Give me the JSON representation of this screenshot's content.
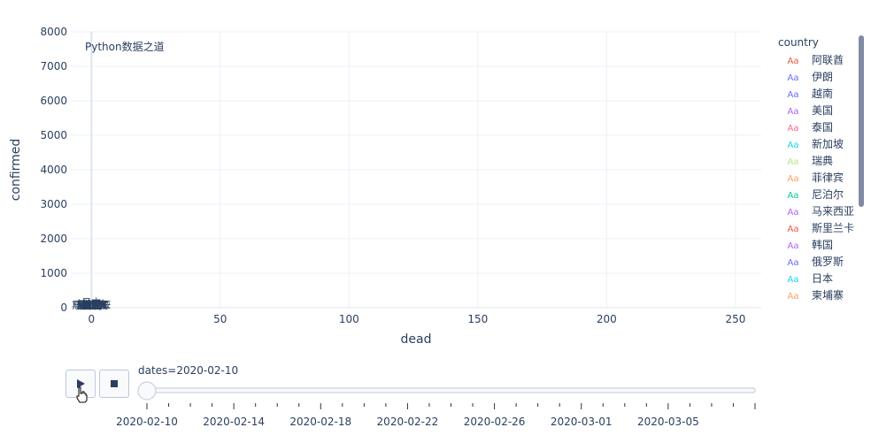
{
  "chart_data": {
    "type": "scatter",
    "title": "",
    "annotation": "Python数据之道",
    "xlabel": "dead",
    "ylabel": "confirmed",
    "xlim": [
      -8,
      260
    ],
    "ylim": [
      0,
      8000
    ],
    "x_ticks": [
      0,
      50,
      100,
      150,
      200,
      250
    ],
    "y_ticks": [
      0,
      1000,
      2000,
      3000,
      4000,
      5000,
      6000,
      7000,
      8000
    ],
    "text_mode": true,
    "grid": true,
    "legend_placement": "right",
    "legend_title": "country",
    "series": [
      {
        "name": "阿联酋",
        "color": "#ef553b",
        "x": [
          0
        ],
        "y": [
          8
        ]
      },
      {
        "name": "伊朗",
        "color": "#636efa",
        "x": [
          0
        ],
        "y": [
          0
        ]
      },
      {
        "name": "越南",
        "color": "#636efa",
        "x": [
          0
        ],
        "y": [
          15
        ]
      },
      {
        "name": "美国",
        "color": "#ab63fa",
        "x": [
          0
        ],
        "y": [
          12
        ]
      },
      {
        "name": "泰国",
        "color": "#ff6692",
        "x": [
          0
        ],
        "y": [
          32
        ]
      },
      {
        "name": "新加坡",
        "color": "#19d3f3",
        "x": [
          0
        ],
        "y": [
          43
        ]
      },
      {
        "name": "瑞典",
        "color": "#b6e880",
        "x": [
          0
        ],
        "y": [
          1
        ]
      },
      {
        "name": "菲律宾",
        "color": "#ffa15a",
        "x": [
          1
        ],
        "y": [
          3
        ]
      },
      {
        "name": "尼泊尔",
        "color": "#00cc96",
        "x": [
          0
        ],
        "y": [
          1
        ]
      },
      {
        "name": "马来西亚",
        "color": "#ab63fa",
        "x": [
          0
        ],
        "y": [
          18
        ]
      },
      {
        "name": "斯里兰卡",
        "color": "#ef553b",
        "x": [
          0
        ],
        "y": [
          1
        ]
      },
      {
        "name": "韩国",
        "color": "#ab63fa",
        "x": [
          0
        ],
        "y": [
          27
        ]
      },
      {
        "name": "俄罗斯",
        "color": "#636efa",
        "x": [
          0
        ],
        "y": [
          2
        ]
      },
      {
        "name": "日本",
        "color": "#19d3f3",
        "x": [
          0
        ],
        "y": [
          96
        ]
      },
      {
        "name": "柬埔寨",
        "color": "#ffa15a",
        "x": [
          0
        ],
        "y": [
          1
        ]
      }
    ]
  },
  "slider": {
    "current_label": "dates=2020-02-10",
    "tick_labels": [
      "2020-02-10",
      "2020-02-14",
      "2020-02-18",
      "2020-02-22",
      "2020-02-26",
      "2020-03-01",
      "2020-03-05"
    ]
  },
  "icons": {
    "play": "play-icon",
    "stop": "stop-icon",
    "cursor": "hand-cursor-icon"
  }
}
